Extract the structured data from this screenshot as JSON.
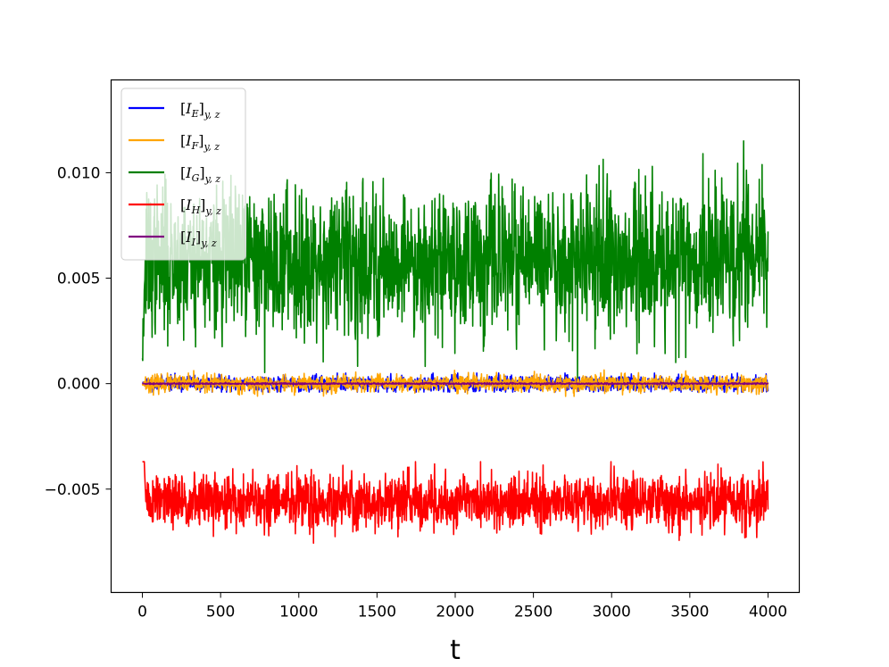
{
  "chart_data": {
    "type": "line",
    "title": "",
    "xlabel": "t",
    "ylabel": "",
    "xlim": [
      -200,
      4200
    ],
    "ylim": [
      -0.0099,
      0.0144
    ],
    "xticks": [
      0,
      500,
      1000,
      1500,
      2000,
      2500,
      3000,
      3500,
      4000
    ],
    "xtick_labels": [
      "0",
      "500",
      "1000",
      "1500",
      "2000",
      "2500",
      "3000",
      "3500",
      "4000"
    ],
    "yticks": [
      -0.005,
      0.0,
      0.005,
      0.01
    ],
    "ytick_labels": [
      "−0.005",
      "0.000",
      "0.005",
      "0.010"
    ],
    "grid": false,
    "legend_position": "top-left",
    "series": [
      {
        "name": "[I_E]_{y,z}",
        "label_main": "[I",
        "label_sub": "E",
        "label_tail": "]",
        "label_subscript": "y, z",
        "color": "#0000ff",
        "start": 0.0,
        "mean": 0.0,
        "amplitude": 0.00018,
        "range": [
          -0.0004,
          0.0005
        ]
      },
      {
        "name": "[I_F]_{y,z}",
        "label_main": "[I",
        "label_sub": "F",
        "label_tail": "]",
        "label_subscript": "y, z",
        "color": "#ffa500",
        "start": 0.0,
        "mean": 0.0,
        "amplitude": 0.0002,
        "range": [
          -0.0006,
          0.0009
        ]
      },
      {
        "name": "[I_G]_{y,z}",
        "label_main": "[I",
        "label_sub": "G",
        "label_tail": "]",
        "label_subscript": "y, z",
        "color": "#008000",
        "start": 0.0012,
        "mean": 0.0058,
        "amplitude": 0.0017,
        "range": [
          -0.0007,
          0.0133
        ]
      },
      {
        "name": "[I_H]_{y,z}",
        "label_main": "[I",
        "label_sub": "H",
        "label_tail": "]",
        "label_subscript": "y, z",
        "color": "#ff0000",
        "start": 0.0,
        "mean": -0.0056,
        "amplitude": 0.00065,
        "range": [
          -0.0088,
          -0.0037
        ]
      },
      {
        "name": "[I_I]_{y,z}",
        "label_main": "[I",
        "label_sub": "I",
        "label_tail": "]",
        "label_subscript": "y, z",
        "color": "#800080",
        "start": 0.0,
        "mean": 0.0,
        "amplitude": 2e-05,
        "range": [
          -0.0001,
          0.0001
        ]
      }
    ],
    "x_range": [
      0,
      4000
    ]
  }
}
